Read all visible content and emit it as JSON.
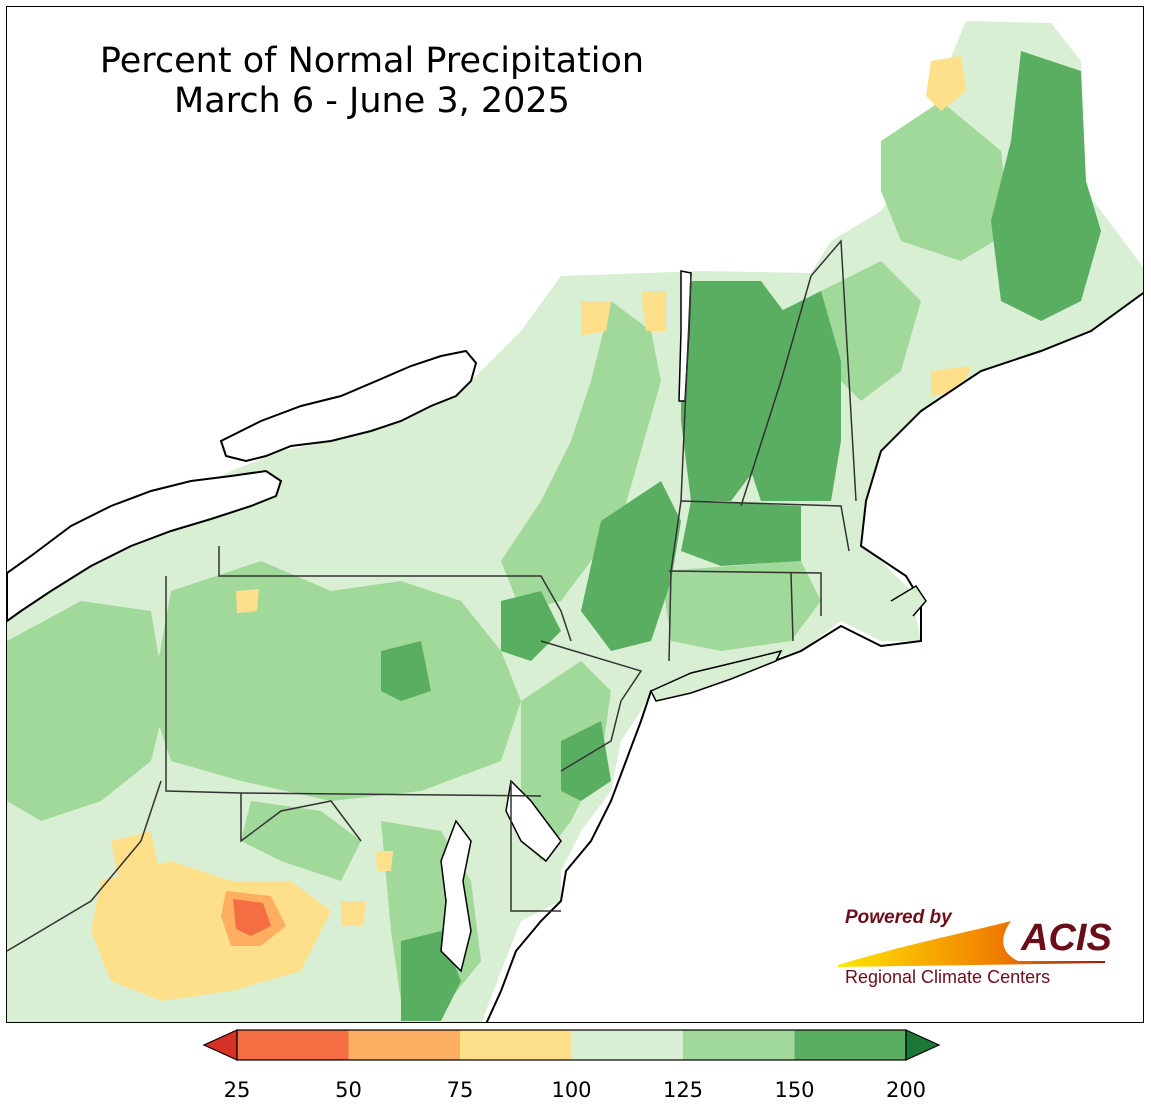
{
  "title": {
    "line1": "Percent of Normal Precipitation",
    "line2": "March 6 - June 3, 2025"
  },
  "logo": {
    "powered": "Powered by",
    "name": "ACIS",
    "subtitle": "Regional Climate Centers",
    "colors": {
      "text": "#6b0e1a",
      "swoosh_start": "#ffe600",
      "swoosh_end": "#9b1b0f"
    }
  },
  "legend": {
    "ticks": [
      "25",
      "50",
      "75",
      "100",
      "125",
      "150",
      "200"
    ],
    "bins": [
      {
        "range": "25-50",
        "color": "#f46d43"
      },
      {
        "range": "50-75",
        "color": "#fdae61"
      },
      {
        "range": "75-100",
        "color": "#fee08b"
      },
      {
        "range": "100-125",
        "color": "#d9efd3"
      },
      {
        "range": "125-150",
        "color": "#a1d99b"
      },
      {
        "range": "150-200",
        "color": "#5aae61"
      }
    ],
    "under_color": "#d73027",
    "over_color": "#1b7837",
    "extend": "both"
  },
  "map_colors": {
    "water": "#ffffff",
    "coast": "#000000",
    "state_border": "#333333",
    "county_border": "#999999"
  }
}
